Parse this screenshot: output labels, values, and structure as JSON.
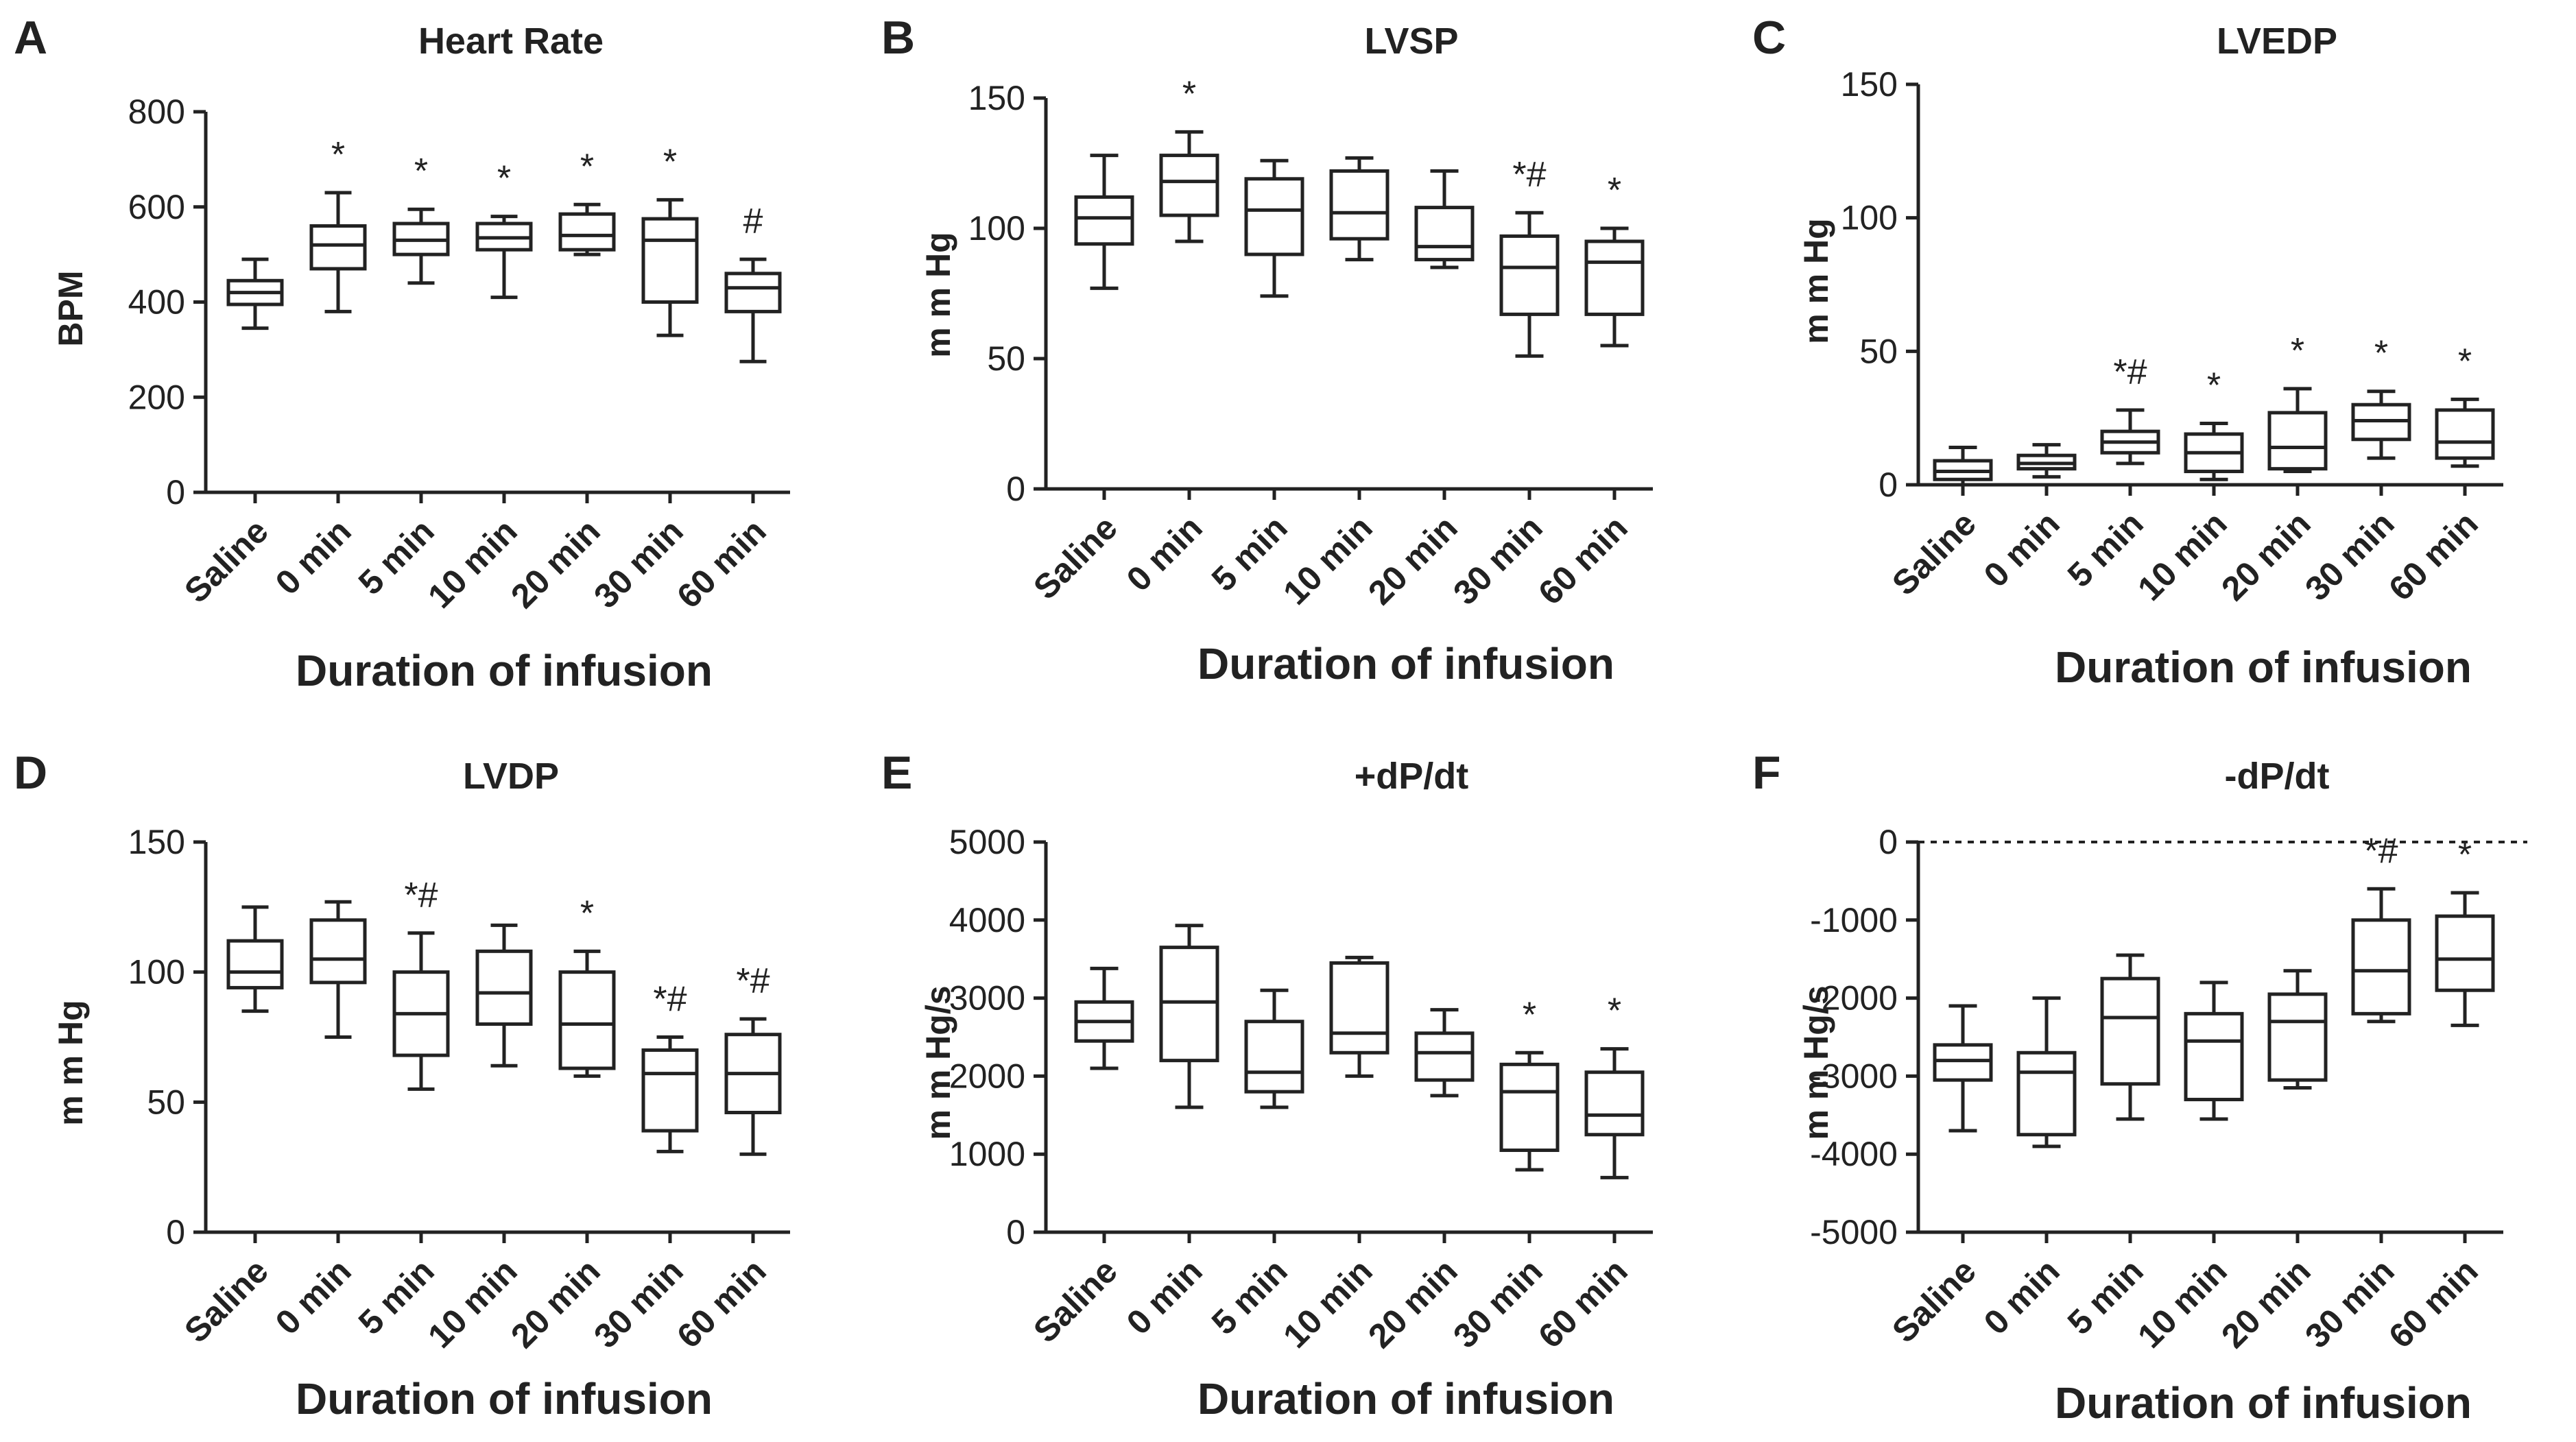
{
  "chart_data": [
    {
      "type": "boxplot",
      "panel": "A",
      "title": "Heart Rate",
      "ylabel": "BPM",
      "xlabel": "Duration of infusion",
      "ylim": [
        0,
        800
      ],
      "yticks": [
        0,
        200,
        400,
        600,
        800
      ],
      "categories": [
        "Saline",
        "0 min",
        "5 min",
        "10 min",
        "20 min",
        "30 min",
        "60 min"
      ],
      "boxes": [
        {
          "min": 345,
          "q1": 395,
          "median": 420,
          "q3": 445,
          "max": 490
        },
        {
          "min": 380,
          "q1": 470,
          "median": 520,
          "q3": 560,
          "max": 630
        },
        {
          "min": 440,
          "q1": 500,
          "median": 530,
          "q3": 565,
          "max": 595
        },
        {
          "min": 410,
          "q1": 510,
          "median": 535,
          "q3": 565,
          "max": 580
        },
        {
          "min": 500,
          "q1": 510,
          "median": 540,
          "q3": 585,
          "max": 605
        },
        {
          "min": 330,
          "q1": 400,
          "median": 530,
          "q3": 575,
          "max": 615
        },
        {
          "min": 275,
          "q1": 380,
          "median": 430,
          "q3": 460,
          "max": 490
        }
      ],
      "annotations": [
        "",
        "*",
        "*",
        "*",
        "*",
        "*",
        "#"
      ]
    },
    {
      "type": "boxplot",
      "panel": "B",
      "title": "LVSP",
      "ylabel": "m m Hg",
      "xlabel": "Duration of infusion",
      "ylim": [
        0,
        150
      ],
      "yticks": [
        0,
        50,
        100,
        150
      ],
      "categories": [
        "Saline",
        "0 min",
        "5 min",
        "10 min",
        "20 min",
        "30 min",
        "60 min"
      ],
      "boxes": [
        {
          "min": 77,
          "q1": 94,
          "median": 104,
          "q3": 112,
          "max": 128
        },
        {
          "min": 95,
          "q1": 105,
          "median": 118,
          "q3": 128,
          "max": 137
        },
        {
          "min": 74,
          "q1": 90,
          "median": 107,
          "q3": 119,
          "max": 126
        },
        {
          "min": 88,
          "q1": 96,
          "median": 106,
          "q3": 122,
          "max": 127
        },
        {
          "min": 85,
          "q1": 88,
          "median": 93,
          "q3": 108,
          "max": 122
        },
        {
          "min": 51,
          "q1": 67,
          "median": 85,
          "q3": 97,
          "max": 106
        },
        {
          "min": 55,
          "q1": 67,
          "median": 87,
          "q3": 95,
          "max": 100
        }
      ],
      "annotations": [
        "",
        "*",
        "",
        "",
        "",
        "*#",
        "*"
      ]
    },
    {
      "type": "boxplot",
      "panel": "C",
      "title": "LVEDP",
      "ylabel": "m m Hg",
      "xlabel": "Duration of infusion",
      "ylim": [
        0,
        150
      ],
      "yticks": [
        0,
        50,
        100,
        150
      ],
      "categories": [
        "Saline",
        "0 min",
        "5 min",
        "10 min",
        "20 min",
        "30 min",
        "60 min"
      ],
      "boxes": [
        {
          "min": 0,
          "q1": 2,
          "median": 5,
          "q3": 9,
          "max": 14
        },
        {
          "min": 3,
          "q1": 6,
          "median": 8,
          "q3": 11,
          "max": 15
        },
        {
          "min": 8,
          "q1": 12,
          "median": 16,
          "q3": 20,
          "max": 28
        },
        {
          "min": 2,
          "q1": 5,
          "median": 12,
          "q3": 19,
          "max": 23
        },
        {
          "min": 5,
          "q1": 6,
          "median": 14,
          "q3": 27,
          "max": 36
        },
        {
          "min": 10,
          "q1": 17,
          "median": 24,
          "q3": 30,
          "max": 35
        },
        {
          "min": 7,
          "q1": 10,
          "median": 16,
          "q3": 28,
          "max": 32
        }
      ],
      "annotations": [
        "",
        "",
        "*#",
        "*",
        "*",
        "*",
        "*"
      ]
    },
    {
      "type": "boxplot",
      "panel": "D",
      "title": "LVDP",
      "ylabel": "m m Hg",
      "xlabel": "Duration of infusion",
      "ylim": [
        0,
        150
      ],
      "yticks": [
        0,
        50,
        100,
        150
      ],
      "categories": [
        "Saline",
        "0 min",
        "5 min",
        "10 min",
        "20 min",
        "30 min",
        "60 min"
      ],
      "boxes": [
        {
          "min": 85,
          "q1": 94,
          "median": 100,
          "q3": 112,
          "max": 125
        },
        {
          "min": 75,
          "q1": 96,
          "median": 105,
          "q3": 120,
          "max": 127
        },
        {
          "min": 55,
          "q1": 68,
          "median": 84,
          "q3": 100,
          "max": 115
        },
        {
          "min": 64,
          "q1": 80,
          "median": 92,
          "q3": 108,
          "max": 118
        },
        {
          "min": 60,
          "q1": 63,
          "median": 80,
          "q3": 100,
          "max": 108
        },
        {
          "min": 31,
          "q1": 39,
          "median": 61,
          "q3": 70,
          "max": 75
        },
        {
          "min": 30,
          "q1": 46,
          "median": 61,
          "q3": 76,
          "max": 82
        }
      ],
      "annotations": [
        "",
        "",
        "*#",
        "",
        "*",
        "*#",
        "*#"
      ]
    },
    {
      "type": "boxplot",
      "panel": "E",
      "title": "+dP/dt",
      "ylabel": "m m Hg/s",
      "xlabel": "Duration of infusion",
      "ylim": [
        0,
        5000
      ],
      "yticks": [
        0,
        1000,
        2000,
        3000,
        4000,
        5000
      ],
      "categories": [
        "Saline",
        "0 min",
        "5 min",
        "10 min",
        "20 min",
        "30 min",
        "60 min"
      ],
      "boxes": [
        {
          "min": 2100,
          "q1": 2450,
          "median": 2700,
          "q3": 2950,
          "max": 3380
        },
        {
          "min": 1600,
          "q1": 2200,
          "median": 2950,
          "q3": 3650,
          "max": 3930
        },
        {
          "min": 1600,
          "q1": 1800,
          "median": 2050,
          "q3": 2700,
          "max": 3100
        },
        {
          "min": 2000,
          "q1": 2300,
          "median": 2550,
          "q3": 3450,
          "max": 3520
        },
        {
          "min": 1750,
          "q1": 1950,
          "median": 2300,
          "q3": 2550,
          "max": 2850
        },
        {
          "min": 800,
          "q1": 1050,
          "median": 1800,
          "q3": 2150,
          "max": 2300
        },
        {
          "min": 700,
          "q1": 1250,
          "median": 1500,
          "q3": 2050,
          "max": 2350
        }
      ],
      "annotations": [
        "",
        "",
        "",
        "",
        "",
        "*",
        "*"
      ]
    },
    {
      "type": "boxplot",
      "panel": "F",
      "title": "-dP/dt",
      "ylabel": "m m Hg/s",
      "xlabel": "Duration of infusion",
      "ylim": [
        -5000,
        0
      ],
      "yticks": [
        -5000,
        -4000,
        -3000,
        -2000,
        -1000,
        0
      ],
      "reference_line": 0,
      "categories": [
        "Saline",
        "0 min",
        "5 min",
        "10 min",
        "20 min",
        "30 min",
        "60 min"
      ],
      "boxes": [
        {
          "min": -3700,
          "q1": -3050,
          "median": -2800,
          "q3": -2600,
          "max": -2100
        },
        {
          "min": -3900,
          "q1": -3750,
          "median": -2950,
          "q3": -2700,
          "max": -2000
        },
        {
          "min": -3550,
          "q1": -3100,
          "median": -2250,
          "q3": -1750,
          "max": -1450
        },
        {
          "min": -3550,
          "q1": -3300,
          "median": -2550,
          "q3": -2200,
          "max": -1800
        },
        {
          "min": -3150,
          "q1": -3050,
          "median": -2300,
          "q3": -1950,
          "max": -1650
        },
        {
          "min": -2300,
          "q1": -2200,
          "median": -1650,
          "q3": -1000,
          "max": -600
        },
        {
          "min": -2350,
          "q1": -1900,
          "median": -1500,
          "q3": -950,
          "max": -650
        }
      ],
      "annotations": [
        "",
        "",
        "",
        "",
        "",
        "*#",
        "*"
      ]
    }
  ]
}
